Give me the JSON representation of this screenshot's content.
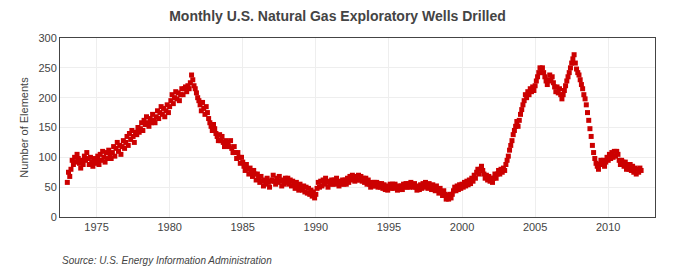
{
  "chart_data": {
    "type": "scatter",
    "title": "Monthly U.S. Natural Gas Exploratory Wells Drilled",
    "ylabel": "Number of Elements",
    "source": "Source: U.S. Energy Information Administration",
    "xlim": [
      1972.5,
      2013.2
    ],
    "ylim": [
      0,
      300
    ],
    "xticks": [
      1975,
      1980,
      1985,
      1990,
      1995,
      2000,
      2005,
      2010
    ],
    "yticks": [
      0,
      50,
      100,
      150,
      200,
      250,
      300
    ],
    "grid": true,
    "color": "#cc0000",
    "marker": "square",
    "x": [
      1973.0,
      1973.083,
      1973.167,
      1973.25,
      1973.333,
      1973.417,
      1973.5,
      1973.583,
      1973.667,
      1973.75,
      1973.833,
      1973.917,
      1974.0,
      1974.083,
      1974.167,
      1974.25,
      1974.333,
      1974.417,
      1974.5,
      1974.583,
      1974.667,
      1974.75,
      1974.833,
      1974.917,
      1975.0,
      1975.083,
      1975.167,
      1975.25,
      1975.333,
      1975.417,
      1975.5,
      1975.583,
      1975.667,
      1975.75,
      1975.833,
      1975.917,
      1976.0,
      1976.083,
      1976.167,
      1976.25,
      1976.333,
      1976.417,
      1976.5,
      1976.583,
      1976.667,
      1976.75,
      1976.833,
      1976.917,
      1977.0,
      1977.083,
      1977.167,
      1977.25,
      1977.333,
      1977.417,
      1977.5,
      1977.583,
      1977.667,
      1977.75,
      1977.833,
      1977.917,
      1978.0,
      1978.083,
      1978.167,
      1978.25,
      1978.333,
      1978.417,
      1978.5,
      1978.583,
      1978.667,
      1978.75,
      1978.833,
      1978.917,
      1979.0,
      1979.083,
      1979.167,
      1979.25,
      1979.333,
      1979.417,
      1979.5,
      1979.583,
      1979.667,
      1979.75,
      1979.833,
      1979.917,
      1980.0,
      1980.083,
      1980.167,
      1980.25,
      1980.333,
      1980.417,
      1980.5,
      1980.583,
      1980.667,
      1980.75,
      1980.833,
      1980.917,
      1981.0,
      1981.083,
      1981.167,
      1981.25,
      1981.333,
      1981.417,
      1981.5,
      1981.583,
      1981.667,
      1981.75,
      1981.833,
      1981.917,
      1982.0,
      1982.083,
      1982.167,
      1982.25,
      1982.333,
      1982.417,
      1982.5,
      1982.583,
      1982.667,
      1982.75,
      1982.833,
      1982.917,
      1983.0,
      1983.083,
      1983.167,
      1983.25,
      1983.333,
      1983.417,
      1983.5,
      1983.583,
      1983.667,
      1983.75,
      1983.833,
      1983.917,
      1984.0,
      1984.083,
      1984.167,
      1984.25,
      1984.333,
      1984.417,
      1984.5,
      1984.583,
      1984.667,
      1984.75,
      1984.833,
      1984.917,
      1985.0,
      1985.083,
      1985.167,
      1985.25,
      1985.333,
      1985.417,
      1985.5,
      1985.583,
      1985.667,
      1985.75,
      1985.833,
      1985.917,
      1986.0,
      1986.083,
      1986.167,
      1986.25,
      1986.333,
      1986.417,
      1986.5,
      1986.583,
      1986.667,
      1986.75,
      1986.833,
      1986.917,
      1987.0,
      1987.083,
      1987.167,
      1987.25,
      1987.333,
      1987.417,
      1987.5,
      1987.583,
      1987.667,
      1987.75,
      1987.833,
      1987.917,
      1988.0,
      1988.083,
      1988.167,
      1988.25,
      1988.333,
      1988.417,
      1988.5,
      1988.583,
      1988.667,
      1988.75,
      1988.833,
      1988.917,
      1989.0,
      1989.083,
      1989.167,
      1989.25,
      1989.333,
      1989.417,
      1989.5,
      1989.583,
      1989.667,
      1989.75,
      1989.833,
      1989.917,
      1990.0,
      1990.083,
      1990.167,
      1990.25,
      1990.333,
      1990.417,
      1990.5,
      1990.583,
      1990.667,
      1990.75,
      1990.833,
      1990.917,
      1991.0,
      1991.083,
      1991.167,
      1991.25,
      1991.333,
      1991.417,
      1991.5,
      1991.583,
      1991.667,
      1991.75,
      1991.833,
      1991.917,
      1992.0,
      1992.083,
      1992.167,
      1992.25,
      1992.333,
      1992.417,
      1992.5,
      1992.583,
      1992.667,
      1992.75,
      1992.833,
      1992.917,
      1993.0,
      1993.083,
      1993.167,
      1993.25,
      1993.333,
      1993.417,
      1993.5,
      1993.583,
      1993.667,
      1993.75,
      1993.833,
      1993.917,
      1994.0,
      1994.083,
      1994.167,
      1994.25,
      1994.333,
      1994.417,
      1994.5,
      1994.583,
      1994.667,
      1994.75,
      1994.833,
      1994.917,
      1995.0,
      1995.083,
      1995.167,
      1995.25,
      1995.333,
      1995.417,
      1995.5,
      1995.583,
      1995.667,
      1995.75,
      1995.833,
      1995.917,
      1996.0,
      1996.083,
      1996.167,
      1996.25,
      1996.333,
      1996.417,
      1996.5,
      1996.583,
      1996.667,
      1996.75,
      1996.833,
      1996.917,
      1997.0,
      1997.083,
      1997.167,
      1997.25,
      1997.333,
      1997.417,
      1997.5,
      1997.583,
      1997.667,
      1997.75,
      1997.833,
      1997.917,
      1998.0,
      1998.083,
      1998.167,
      1998.25,
      1998.333,
      1998.417,
      1998.5,
      1998.583,
      1998.667,
      1998.75,
      1998.833,
      1998.917,
      1999.0,
      1999.083,
      1999.167,
      1999.25,
      1999.333,
      1999.417,
      1999.5,
      1999.583,
      1999.667,
      1999.75,
      1999.833,
      1999.917,
      2000.0,
      2000.083,
      2000.167,
      2000.25,
      2000.333,
      2000.417,
      2000.5,
      2000.583,
      2000.667,
      2000.75,
      2000.833,
      2000.917,
      2001.0,
      2001.083,
      2001.167,
      2001.25,
      2001.333,
      2001.417,
      2001.5,
      2001.583,
      2001.667,
      2001.75,
      2001.833,
      2001.917,
      2002.0,
      2002.083,
      2002.167,
      2002.25,
      2002.333,
      2002.417,
      2002.5,
      2002.583,
      2002.667,
      2002.75,
      2002.833,
      2002.917,
      2003.0,
      2003.083,
      2003.167,
      2003.25,
      2003.333,
      2003.417,
      2003.5,
      2003.583,
      2003.667,
      2003.75,
      2003.833,
      2003.917,
      2004.0,
      2004.083,
      2004.167,
      2004.25,
      2004.333,
      2004.417,
      2004.5,
      2004.583,
      2004.667,
      2004.75,
      2004.833,
      2004.917,
      2005.0,
      2005.083,
      2005.167,
      2005.25,
      2005.333,
      2005.417,
      2005.5,
      2005.583,
      2005.667,
      2005.75,
      2005.833,
      2005.917,
      2006.0,
      2006.083,
      2006.167,
      2006.25,
      2006.333,
      2006.417,
      2006.5,
      2006.583,
      2006.667,
      2006.75,
      2006.833,
      2006.917,
      2007.0,
      2007.083,
      2007.167,
      2007.25,
      2007.333,
      2007.417,
      2007.5,
      2007.583,
      2007.667,
      2007.75,
      2007.833,
      2007.917,
      2008.0,
      2008.083,
      2008.167,
      2008.25,
      2008.333,
      2008.417,
      2008.5,
      2008.583,
      2008.667,
      2008.75,
      2008.833,
      2008.917,
      2009.0,
      2009.083,
      2009.167,
      2009.25,
      2009.333,
      2009.417,
      2009.5,
      2009.583,
      2009.667,
      2009.75,
      2009.833,
      2009.917,
      2010.0,
      2010.083,
      2010.167,
      2010.25,
      2010.333,
      2010.417,
      2010.5,
      2010.583,
      2010.667,
      2010.75,
      2010.833,
      2010.917,
      2011.0,
      2011.083,
      2011.167,
      2011.25,
      2011.333,
      2011.417,
      2011.5,
      2011.583,
      2011.667,
      2011.75,
      2011.833,
      2011.917,
      2012.0,
      2012.083,
      2012.167,
      2012.25
    ],
    "values": [
      58,
      75,
      68,
      80,
      95,
      88,
      100,
      92,
      105,
      98,
      90,
      82,
      95,
      88,
      102,
      95,
      108,
      98,
      88,
      100,
      92,
      85,
      98,
      90,
      95,
      102,
      88,
      105,
      95,
      110,
      100,
      92,
      108,
      98,
      112,
      105,
      98,
      108,
      118,
      102,
      115,
      125,
      110,
      120,
      105,
      118,
      128,
      115,
      125,
      135,
      120,
      140,
      130,
      145,
      135,
      125,
      142,
      138,
      150,
      142,
      148,
      158,
      145,
      162,
      155,
      168,
      158,
      152,
      165,
      158,
      172,
      162,
      158,
      168,
      178,
      165,
      175,
      185,
      172,
      182,
      168,
      178,
      188,
      175,
      185,
      195,
      205,
      190,
      200,
      210,
      198,
      208,
      195,
      205,
      215,
      205,
      215,
      218,
      210,
      220,
      215,
      225,
      238,
      230,
      220,
      215,
      208,
      200,
      195,
      188,
      178,
      192,
      182,
      172,
      185,
      175,
      165,
      158,
      152,
      145,
      155,
      148,
      140,
      135,
      128,
      138,
      128,
      135,
      125,
      118,
      128,
      120,
      125,
      118,
      128,
      115,
      108,
      118,
      108,
      98,
      108,
      100,
      90,
      100,
      92,
      85,
      78,
      88,
      80,
      72,
      82,
      75,
      68,
      78,
      72,
      62,
      72,
      65,
      58,
      68,
      60,
      52,
      62,
      55,
      65,
      58,
      50,
      60,
      62,
      70,
      60,
      55,
      65,
      58,
      68,
      60,
      52,
      62,
      55,
      65,
      58,
      65,
      55,
      62,
      52,
      60,
      55,
      48,
      58,
      52,
      45,
      55,
      50,
      45,
      52,
      42,
      50,
      40,
      48,
      38,
      45,
      35,
      42,
      32,
      38,
      48,
      58,
      50,
      60,
      52,
      62,
      55,
      65,
      58,
      50,
      60,
      55,
      62,
      55,
      62,
      55,
      65,
      58,
      52,
      60,
      55,
      62,
      55,
      62,
      55,
      65,
      58,
      68,
      62,
      70,
      65,
      60,
      68,
      62,
      70,
      62,
      68,
      60,
      65,
      58,
      65,
      55,
      62,
      55,
      50,
      58,
      52,
      58,
      52,
      58,
      50,
      56,
      50,
      56,
      48,
      54,
      46,
      52,
      45,
      50,
      55,
      48,
      55,
      48,
      55,
      50,
      45,
      52,
      46,
      52,
      46,
      55,
      50,
      56,
      50,
      56,
      50,
      58,
      52,
      50,
      56,
      50,
      45,
      52,
      46,
      54,
      48,
      56,
      50,
      58,
      52,
      48,
      56,
      50,
      46,
      54,
      48,
      44,
      52,
      46,
      40,
      48,
      42,
      36,
      44,
      38,
      30,
      36,
      30,
      38,
      32,
      38,
      44,
      50,
      44,
      52,
      46,
      54,
      48,
      55,
      50,
      58,
      52,
      60,
      54,
      62,
      56,
      65,
      60,
      70,
      65,
      75,
      80,
      72,
      80,
      85,
      78,
      72,
      65,
      70,
      62,
      68,
      60,
      65,
      58,
      65,
      72,
      65,
      72,
      78,
      72,
      80,
      75,
      82,
      78,
      88,
      95,
      102,
      112,
      120,
      128,
      138,
      145,
      152,
      160,
      152,
      162,
      172,
      180,
      188,
      195,
      205,
      200,
      210,
      205,
      215,
      210,
      218,
      212,
      220,
      228,
      235,
      242,
      250,
      242,
      250,
      242,
      235,
      228,
      222,
      230,
      238,
      228,
      235,
      225,
      218,
      210,
      218,
      208,
      215,
      205,
      198,
      205,
      212,
      220,
      228,
      235,
      242,
      250,
      258,
      265,
      272,
      258,
      248,
      242,
      238,
      230,
      222,
      215,
      205,
      198,
      188,
      175,
      162,
      148,
      135,
      120,
      108,
      98,
      90,
      85,
      80,
      88,
      95,
      88,
      95,
      85,
      92,
      100,
      95,
      105,
      98,
      108,
      100,
      110,
      102,
      110,
      105,
      95,
      88,
      95,
      92,
      85,
      92,
      80,
      88,
      80,
      88,
      78,
      85,
      75,
      82,
      72,
      80,
      75,
      82,
      78
    ]
  }
}
